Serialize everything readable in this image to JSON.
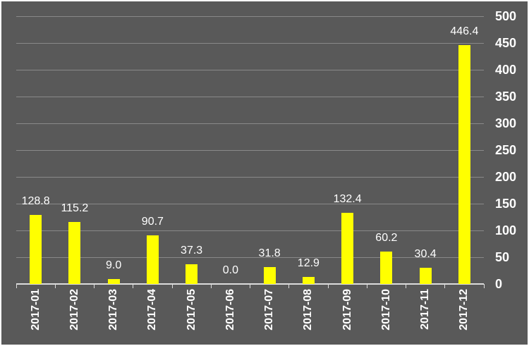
{
  "chart_data": {
    "type": "bar",
    "title": "",
    "xlabel": "",
    "ylabel": "",
    "categories": [
      "2017-01",
      "2017-02",
      "2017-03",
      "2017-04",
      "2017-05",
      "2017-06",
      "2017-07",
      "2017-08",
      "2017-09",
      "2017-10",
      "2017-11",
      "2017-12"
    ],
    "values": [
      128.8,
      115.2,
      9.0,
      90.7,
      37.3,
      0.0,
      31.8,
      12.9,
      132.4,
      60.2,
      30.4,
      446.4
    ],
    "value_labels": [
      "128.8",
      "115.2",
      "9.0",
      "90.7",
      "37.3",
      "0.0",
      "31.8",
      "12.9",
      "132.4",
      "60.2",
      "30.4",
      "446.4"
    ],
    "ylim": [
      0,
      500
    ],
    "y_ticks": [
      0,
      50,
      100,
      150,
      200,
      250,
      300,
      350,
      400,
      450,
      500
    ],
    "y_tick_labels": [
      "0",
      "50",
      "100",
      "150",
      "200",
      "250",
      "300",
      "350",
      "400",
      "450",
      "500"
    ],
    "y_axis_side": "right",
    "x_label_rotation_deg": -90,
    "grid": true,
    "legend": "none",
    "colors": {
      "background": "#595959",
      "bar": "#FFFF00",
      "gridline": "#898989",
      "axis_line": "#DCDCDC",
      "text": "#FFFFFF",
      "border": "#FFFFFF"
    }
  }
}
